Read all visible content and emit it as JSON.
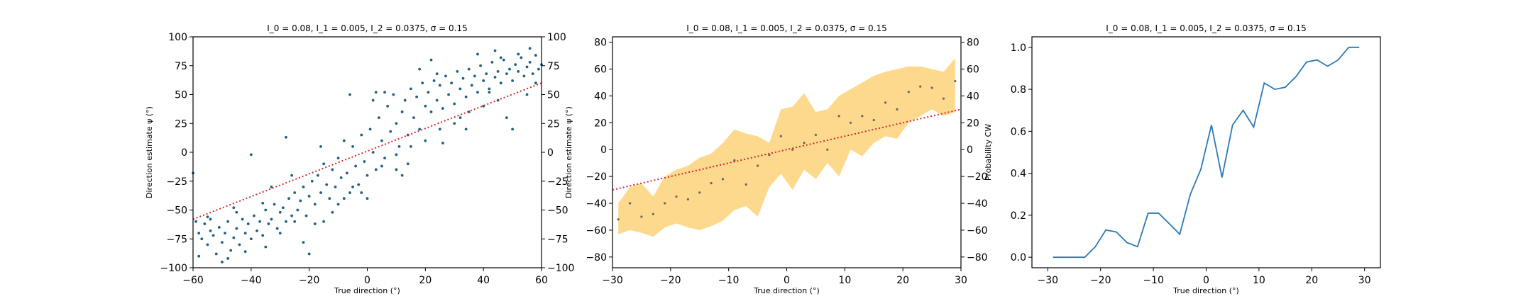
{
  "colors": {
    "scatter": "#1f5f8b",
    "regression": "#d62728",
    "band": "#fcc451",
    "line": "#2c79b5",
    "axis": "#000000"
  },
  "chart_data": [
    {
      "type": "scatter",
      "title": "I_0 = 0.08, I_1 = 0.005, I_2 = 0.0375, σ = 0.15",
      "xlabel": "True direction (°)",
      "ylabel": "Direction estimate ψ (°)",
      "xlim": [
        -60,
        60
      ],
      "ylim": [
        -100,
        100
      ],
      "xticks": [
        -60,
        -40,
        -20,
        0,
        20,
        40,
        60
      ],
      "yticks": [
        -100,
        -75,
        -50,
        -25,
        0,
        25,
        50,
        75,
        100
      ],
      "right_yticks": [
        -100,
        -75,
        -50,
        -25,
        0,
        25,
        50,
        75,
        100
      ],
      "grid": false,
      "regression_line": {
        "x": [
          -60,
          60
        ],
        "y": [
          -58,
          60
        ],
        "style": "dotted"
      },
      "points": [
        [
          -59,
          -60
        ],
        [
          -58,
          -70
        ],
        [
          -57,
          -75
        ],
        [
          -56,
          -62
        ],
        [
          -55,
          -80
        ],
        [
          -54,
          -68
        ],
        [
          -53,
          -72
        ],
        [
          -52,
          -88
        ],
        [
          -51,
          -65
        ],
        [
          -50,
          -78
        ],
        [
          -49,
          -70
        ],
        [
          -48,
          -60
        ],
        [
          -47,
          -85
        ],
        [
          -46,
          -74
        ],
        [
          -45,
          -66
        ],
        [
          -44,
          -80
        ],
        [
          -43,
          -58
        ],
        [
          -42,
          -70
        ],
        [
          -41,
          -62
        ],
        [
          -40,
          -75
        ],
        [
          -39,
          -55
        ],
        [
          -38,
          -68
        ],
        [
          -37,
          -60
        ],
        [
          -36,
          -72
        ],
        [
          -35,
          -50
        ],
        [
          -34,
          -62
        ],
        [
          -33,
          -58
        ],
        [
          -32,
          -45
        ],
        [
          -31,
          -66
        ],
        [
          -30,
          -52
        ],
        [
          -29,
          -48
        ],
        [
          -28,
          -60
        ],
        [
          -27,
          -40
        ],
        [
          -26,
          -55
        ],
        [
          -25,
          -35
        ],
        [
          -24,
          -50
        ],
        [
          -23,
          -42
        ],
        [
          -22,
          -30
        ],
        [
          -21,
          -55
        ],
        [
          -20,
          -38
        ],
        [
          -19,
          -25
        ],
        [
          -18,
          -45
        ],
        [
          -17,
          -20
        ],
        [
          -16,
          -35
        ],
        [
          -15,
          -10
        ],
        [
          -14,
          -28
        ],
        [
          -13,
          -40
        ],
        [
          -12,
          -15
        ],
        [
          -11,
          -30
        ],
        [
          -10,
          -5
        ],
        [
          -9,
          -22
        ],
        [
          -8,
          10
        ],
        [
          -7,
          -18
        ],
        [
          -6,
          -35
        ],
        [
          -5,
          5
        ],
        [
          -4,
          -12
        ],
        [
          -3,
          -28
        ],
        [
          -2,
          15
        ],
        [
          -1,
          -8
        ],
        [
          0,
          -20
        ],
        [
          1,
          20
        ],
        [
          2,
          0
        ],
        [
          3,
          -15
        ],
        [
          4,
          30
        ],
        [
          5,
          10
        ],
        [
          6,
          -5
        ],
        [
          7,
          40
        ],
        [
          8,
          18
        ],
        [
          9,
          50
        ],
        [
          10,
          25
        ],
        [
          11,
          5
        ],
        [
          12,
          35
        ],
        [
          13,
          45
        ],
        [
          14,
          15
        ],
        [
          15,
          55
        ],
        [
          16,
          30
        ],
        [
          17,
          48
        ],
        [
          18,
          20
        ],
        [
          19,
          60
        ],
        [
          20,
          40
        ],
        [
          21,
          52
        ],
        [
          22,
          35
        ],
        [
          23,
          62
        ],
        [
          24,
          45
        ],
        [
          25,
          58
        ],
        [
          26,
          38
        ],
        [
          27,
          66
        ],
        [
          28,
          50
        ],
        [
          29,
          60
        ],
        [
          30,
          42
        ],
        [
          31,
          70
        ],
        [
          32,
          55
        ],
        [
          33,
          64
        ],
        [
          34,
          48
        ],
        [
          35,
          72
        ],
        [
          36,
          58
        ],
        [
          37,
          66
        ],
        [
          38,
          52
        ],
        [
          39,
          75
        ],
        [
          40,
          62
        ],
        [
          41,
          68
        ],
        [
          42,
          55
        ],
        [
          43,
          78
        ],
        [
          44,
          65
        ],
        [
          45,
          70
        ],
        [
          46,
          60
        ],
        [
          47,
          80
        ],
        [
          48,
          68
        ],
        [
          49,
          72
        ],
        [
          50,
          62
        ],
        [
          51,
          76
        ],
        [
          52,
          70
        ],
        [
          53,
          82
        ],
        [
          54,
          66
        ],
        [
          55,
          74
        ],
        [
          56,
          78
        ],
        [
          57,
          68
        ],
        [
          58,
          84
        ],
        [
          59,
          72
        ],
        [
          60,
          76
        ],
        [
          -58,
          -90
        ],
        [
          -55,
          -56
        ],
        [
          -50,
          -95
        ],
        [
          -45,
          -52
        ],
        [
          -40,
          -2
        ],
        [
          -35,
          -82
        ],
        [
          -30,
          -70
        ],
        [
          -25,
          -60
        ],
        [
          -20,
          -88
        ],
        [
          -15,
          -60
        ],
        [
          -10,
          -45
        ],
        [
          -5,
          -30
        ],
        [
          0,
          -40
        ],
        [
          5,
          -12
        ],
        [
          10,
          -15
        ],
        [
          15,
          5
        ],
        [
          20,
          10
        ],
        [
          25,
          20
        ],
        [
          30,
          25
        ],
        [
          35,
          35
        ],
        [
          40,
          40
        ],
        [
          45,
          45
        ],
        [
          50,
          20
        ],
        [
          55,
          50
        ],
        [
          -54,
          -58
        ],
        [
          -48,
          -92
        ],
        [
          -42,
          -86
        ],
        [
          -36,
          -44
        ],
        [
          -28,
          13
        ],
        [
          -22,
          -78
        ],
        [
          -18,
          -62
        ],
        [
          -12,
          -52
        ],
        [
          -8,
          -40
        ],
        [
          -2,
          -35
        ],
        [
          2,
          45
        ],
        [
          6,
          52
        ],
        [
          10,
          -2
        ],
        [
          14,
          -10
        ],
        [
          18,
          72
        ],
        [
          22,
          80
        ],
        [
          26,
          8
        ],
        [
          32,
          30
        ],
        [
          38,
          85
        ],
        [
          44,
          88
        ],
        [
          48,
          30
        ],
        [
          52,
          85
        ],
        [
          56,
          90
        ],
        [
          -60,
          -18
        ],
        [
          -46,
          -48
        ],
        [
          -33,
          -30
        ],
        [
          -26,
          -20
        ],
        [
          -16,
          5
        ],
        [
          -6,
          50
        ],
        [
          3,
          52
        ],
        [
          12,
          -20
        ],
        [
          24,
          68
        ],
        [
          34,
          20
        ],
        [
          42,
          52
        ],
        [
          46,
          82
        ],
        [
          58,
          60
        ]
      ]
    },
    {
      "type": "area",
      "title": "I_0 = 0.08, I_1 = 0.005, I_2 = 0.0375, σ = 0.15",
      "xlabel": "True direction (°)",
      "ylabel": "Direction estimate ψ (°)",
      "xlim": [
        -30,
        30
      ],
      "ylim": [
        -88,
        84
      ],
      "xticks": [
        -30,
        -20,
        -10,
        0,
        10,
        20,
        30
      ],
      "yticks": [
        -80,
        -60,
        -40,
        -20,
        0,
        20,
        40,
        60,
        80
      ],
      "right_yticks": [
        -80,
        -60,
        -40,
        -20,
        0,
        20,
        40,
        60,
        80
      ],
      "grid": false,
      "regression_line": {
        "x": [
          -30,
          30
        ],
        "y": [
          -30,
          30
        ],
        "style": "dotted"
      },
      "x": [
        -29,
        -27,
        -25,
        -23,
        -21,
        -19,
        -17,
        -15,
        -13,
        -11,
        -9,
        -7,
        -5,
        -3,
        -1,
        1,
        3,
        5,
        7,
        9,
        11,
        13,
        15,
        17,
        19,
        21,
        23,
        25,
        27,
        29
      ],
      "mean": [
        -52,
        -40,
        -50,
        -48,
        -40,
        -35,
        -37,
        -32,
        -25,
        -22,
        -8,
        -26,
        -12,
        -4,
        10,
        0,
        5,
        11,
        0,
        25,
        20,
        25,
        22,
        35,
        30,
        43,
        47,
        46,
        38,
        51
      ],
      "lower": [
        -63,
        -60,
        -62,
        -65,
        -58,
        -55,
        -58,
        -60,
        -57,
        -53,
        -45,
        -42,
        -50,
        -28,
        -18,
        -30,
        -15,
        -22,
        -10,
        -20,
        0,
        -5,
        5,
        10,
        8,
        20,
        25,
        30,
        25,
        28
      ],
      "upper": [
        -40,
        -28,
        -25,
        -35,
        -20,
        -15,
        -12,
        -6,
        -3,
        5,
        15,
        12,
        10,
        5,
        30,
        32,
        42,
        28,
        30,
        40,
        45,
        50,
        55,
        58,
        60,
        62,
        62,
        60,
        58,
        68
      ]
    },
    {
      "type": "line",
      "title": "I_0 = 0.08, I_1 = 0.005, I_2 = 0.0375, σ = 0.15",
      "xlabel": "True direction (°)",
      "ylabel": "Probability CW",
      "xlim": [
        -33,
        33
      ],
      "ylim": [
        -0.05,
        1.05
      ],
      "xticks": [
        -30,
        -20,
        -10,
        0,
        10,
        20,
        30
      ],
      "yticks": [
        "0.0",
        "0.2",
        "0.4",
        "0.6",
        "0.8",
        "1.0"
      ],
      "grid": false,
      "x": [
        -29,
        -27,
        -25,
        -23,
        -21,
        -19,
        -17,
        -15,
        -13,
        -11,
        -9,
        -7,
        -5,
        -3,
        -1,
        1,
        3,
        5,
        7,
        9,
        11,
        13,
        15,
        17,
        19,
        21,
        23,
        25,
        27,
        29
      ],
      "y": [
        0.0,
        0.0,
        0.0,
        0.0,
        0.05,
        0.13,
        0.12,
        0.07,
        0.05,
        0.21,
        0.21,
        0.16,
        0.11,
        0.3,
        0.42,
        0.63,
        0.38,
        0.63,
        0.7,
        0.62,
        0.83,
        0.8,
        0.81,
        0.86,
        0.93,
        0.94,
        0.91,
        0.94,
        1.0,
        1.0
      ]
    }
  ]
}
